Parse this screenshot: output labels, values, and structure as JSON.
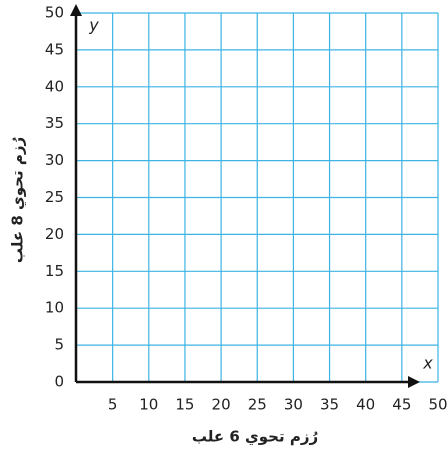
{
  "chart_data": {
    "type": "scatter",
    "x_label": "رُزم تحوي 6 علب",
    "y_label": "رُزم تحوي 8 علب",
    "x_name": "x",
    "y_name": "y",
    "xlim": [
      0,
      50
    ],
    "ylim": [
      0,
      50
    ],
    "xticks": [
      5,
      10,
      15,
      20,
      25,
      30,
      35,
      40,
      45,
      50
    ],
    "yticks": [
      0,
      5,
      10,
      15,
      20,
      25,
      30,
      35,
      40,
      45,
      50
    ],
    "grid": true,
    "grid_color": "#3db4e4"
  }
}
